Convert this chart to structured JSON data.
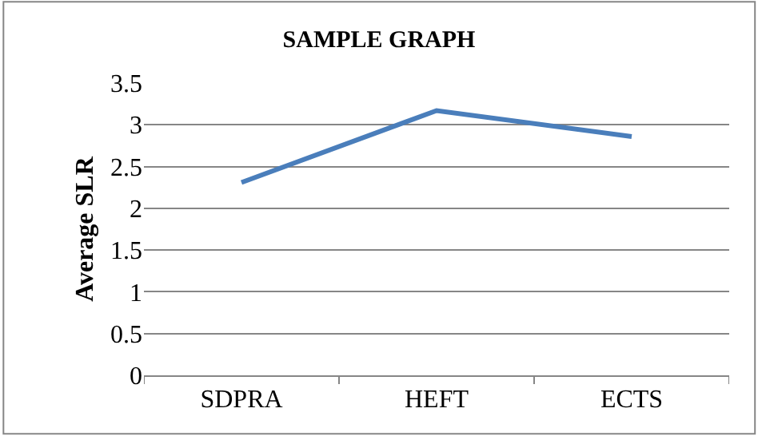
{
  "chart_data": {
    "type": "line",
    "title": "SAMPLE GRAPH",
    "ylabel": "Average SLR",
    "categories": [
      "SDPRA",
      "HEFT",
      "ECTS"
    ],
    "series": [
      {
        "color": "#4a7ebb",
        "values": [
          2.31,
          3.17,
          2.86
        ]
      }
    ],
    "ylim": [
      0,
      3.5
    ],
    "yticks": [
      0,
      0.5,
      1,
      1.5,
      2,
      2.5,
      3,
      3.5
    ],
    "grid": "y",
    "marker": "none",
    "line_style": "solid"
  }
}
